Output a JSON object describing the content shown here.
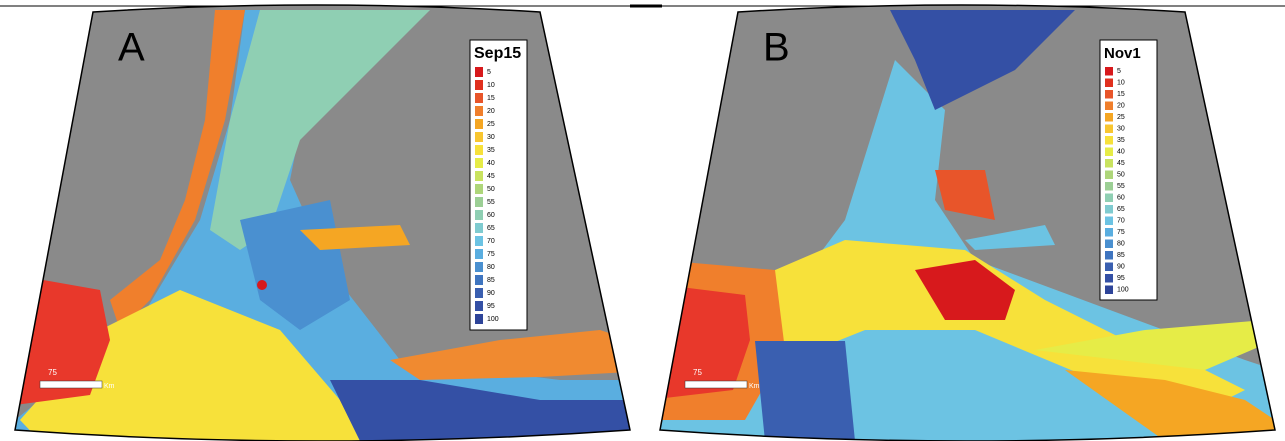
{
  "panels": [
    {
      "letter": "A",
      "legend": {
        "title": "Sep15",
        "items": [
          5,
          10,
          15,
          20,
          25,
          30,
          35,
          40,
          45,
          50,
          55,
          60,
          65,
          70,
          75,
          80,
          85,
          90,
          95,
          100
        ]
      },
      "scale_bar": {
        "value": 75,
        "unit": "Km"
      }
    },
    {
      "letter": "B",
      "legend": {
        "title": "Nov1",
        "items": [
          5,
          10,
          15,
          20,
          25,
          30,
          35,
          40,
          45,
          50,
          55,
          60,
          65,
          70,
          75,
          80,
          85,
          90,
          95,
          100
        ]
      },
      "scale_bar": {
        "value": 75,
        "unit": "Km"
      }
    }
  ],
  "legend_colors": [
    "#d7191c",
    "#e0301e",
    "#e8552a",
    "#f07f2c",
    "#f5a623",
    "#f8c630",
    "#f7e13a",
    "#e6ec47",
    "#c9e35f",
    "#aed67a",
    "#9ccf95",
    "#8fcfb3",
    "#7fcbd0",
    "#6cc3e3",
    "#5aaee0",
    "#4a90d0",
    "#3f75c0",
    "#3a5fb0",
    "#3450a5",
    "#2e4499"
  ]
}
